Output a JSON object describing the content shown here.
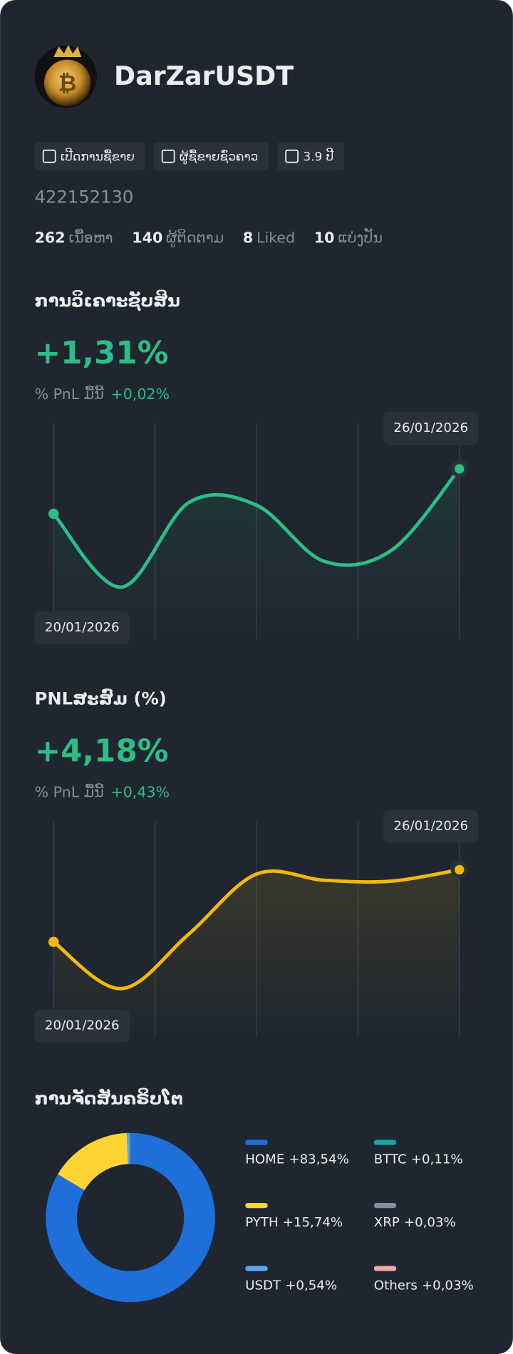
{
  "profile": {
    "name": "DarZarUSDT",
    "badges": [
      "ເປີດການຊື້ຂາຍ",
      "ຜູ້ຊື້ຂາຍຊົ່ວຄາວ",
      "3.9 ປີ"
    ],
    "id": "422152130",
    "stats": [
      {
        "value": 262,
        "label": "ເນື້ອຫາ"
      },
      {
        "value": 140,
        "label": "ຜູ້ຕິດຕາມ"
      },
      {
        "value": 8,
        "label": "Liked"
      },
      {
        "value": 10,
        "label": "ແບ່ງປັນ"
      }
    ]
  },
  "chart_data": [
    {
      "type": "line",
      "title": "ການວິເຄາະຊັບສິນ",
      "headline": "+1,31%",
      "subtitle": "% PnL ມື້ນີ້",
      "subtitle_value": "+0,02%",
      "categories": [
        "20/01/2026",
        null,
        null,
        null,
        null,
        null,
        "26/01/2026"
      ],
      "values": [
        0.79,
        -0.06,
        0.92,
        0.89,
        0.24,
        0.37,
        1.31
      ],
      "color": "#2ebd85",
      "ylim": [
        -0.66,
        1.84
      ],
      "grid": true
    },
    {
      "type": "line",
      "title": "PNLສະສົມ (%)",
      "headline": "+4,18%",
      "subtitle": "% PnL ມື້ນີ້",
      "subtitle_value": "+0,43%",
      "categories": [
        "20/01/2026",
        null,
        null,
        null,
        null,
        null,
        "26/01/2026"
      ],
      "values": [
        3.36,
        2.83,
        3.45,
        4.13,
        4.06,
        4.05,
        4.18
      ],
      "color": "#f0b90b",
      "ylim": [
        2.28,
        4.73
      ],
      "grid": true
    },
    {
      "type": "pie",
      "title": "ການຈັດສັນຄຣິບໂຕ",
      "categories": [
        "HOME",
        "PYTH",
        "USDT",
        "BTTC",
        "XRP",
        "Others"
      ],
      "values": [
        83.54,
        15.74,
        0.54,
        0.11,
        0.03,
        0.03
      ],
      "value_labels": [
        "+83,54%",
        "+15,74%",
        "+0,54%",
        "+0,11%",
        "+0,03%",
        "+0,03%"
      ],
      "colors": [
        "#1f6fd9",
        "#fcd535",
        "#5ba3f5",
        "#18a5a7",
        "#848e9c",
        "#f6a5ad"
      ]
    }
  ]
}
